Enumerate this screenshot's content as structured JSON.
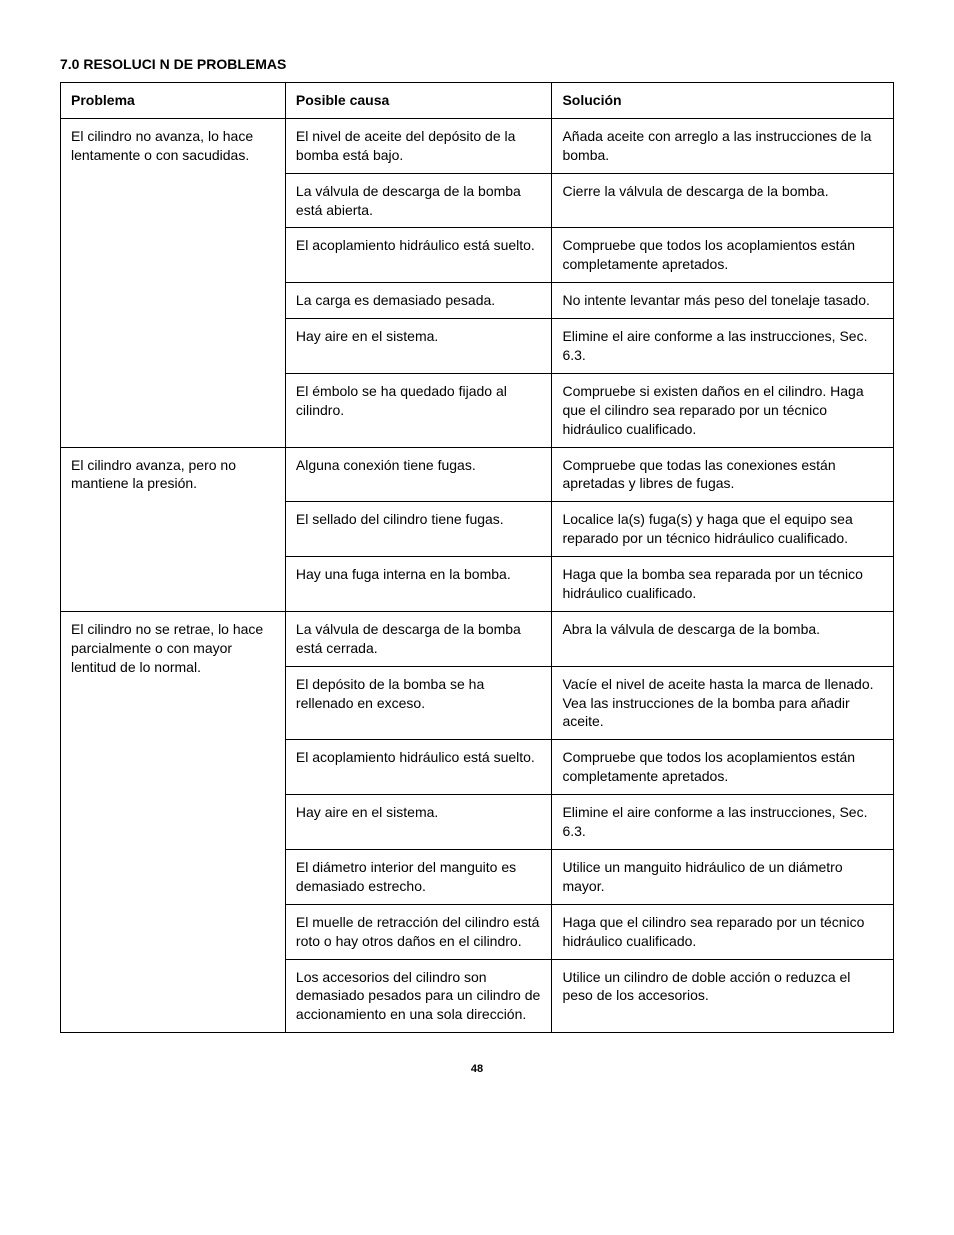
{
  "section_title": "7.0  RESOLUCI N DE PROBLEMAS",
  "page_number": "48",
  "table": {
    "headers": {
      "c1": "Problema",
      "c2": "Posible causa",
      "c3": "Solución"
    },
    "groups": [
      {
        "problem": "El cilindro no avanza, lo hace lentamente o con sacudidas.",
        "rows": [
          {
            "cause": "El nivel de aceite del depósito de la bomba está bajo.",
            "solution": "Añada aceite con arreglo a las instrucciones de la bomba."
          },
          {
            "cause": "La válvula de descarga de la bomba está abierta.",
            "solution": "Cierre la válvula de descarga de la bomba."
          },
          {
            "cause": "El acoplamiento hidráulico está suelto.",
            "solution": "Compruebe que todos los acoplamientos están completamente apretados."
          },
          {
            "cause": "La carga es demasiado pesada.",
            "solution": "No intente levantar más peso del tonelaje tasado."
          },
          {
            "cause": "Hay aire en el sistema.",
            "solution": "Elimine el aire conforme a las instrucciones, Sec. 6.3."
          },
          {
            "cause": "El émbolo se ha quedado fijado al cilindro.",
            "solution": "Compruebe si existen daños en el cilindro. Haga que el cilindro sea reparado por un técnico hidráulico cualificado."
          }
        ]
      },
      {
        "problem": "El cilindro avanza, pero no mantiene la presión.",
        "rows": [
          {
            "cause": "Alguna conexión tiene fugas.",
            "solution": "Compruebe que todas las conexiones están apretadas y libres de fugas."
          },
          {
            "cause": "El sellado del cilindro tiene fugas.",
            "solution": "Localice la(s) fuga(s) y haga que el equipo sea reparado por un técnico hidráulico cualificado."
          },
          {
            "cause": "Hay una fuga interna en la bomba.",
            "solution": "Haga que la bomba sea reparada por un técnico hidráulico cualificado."
          }
        ]
      },
      {
        "problem": "El cilindro no se retrae, lo hace parcialmente o con mayor lentitud de lo normal.",
        "rows": [
          {
            "cause": "La válvula de descarga de la bomba está cerrada.",
            "solution": "Abra la válvula de descarga de la bomba."
          },
          {
            "cause": "El depósito de la bomba se ha rellenado en exceso.",
            "solution": "Vacíe el nivel de aceite hasta la marca de llenado. Vea las instrucciones de la bomba para añadir aceite."
          },
          {
            "cause": "El acoplamiento hidráulico está suelto.",
            "solution": "Compruebe que todos los acoplamientos están completamente apretados."
          },
          {
            "cause": "Hay aire en el sistema.",
            "solution": "Elimine el aire conforme a las instrucciones, Sec. 6.3."
          },
          {
            "cause": "El diámetro interior del manguito es demasiado estrecho.",
            "solution": "Utilice un manguito hidráulico de un diámetro mayor."
          },
          {
            "cause": "El muelle de retracción del cilindro está roto o hay otros daños en el cilindro.",
            "solution": "Haga que el cilindro sea reparado por un técnico hidráulico cualificado."
          },
          {
            "cause": "Los accesorios del cilindro son demasiado pesados para un cilindro de accionamiento en una sola dirección.",
            "solution": "Utilice un cilindro de doble acción o reduzca el peso de los accesorios."
          }
        ]
      }
    ]
  }
}
